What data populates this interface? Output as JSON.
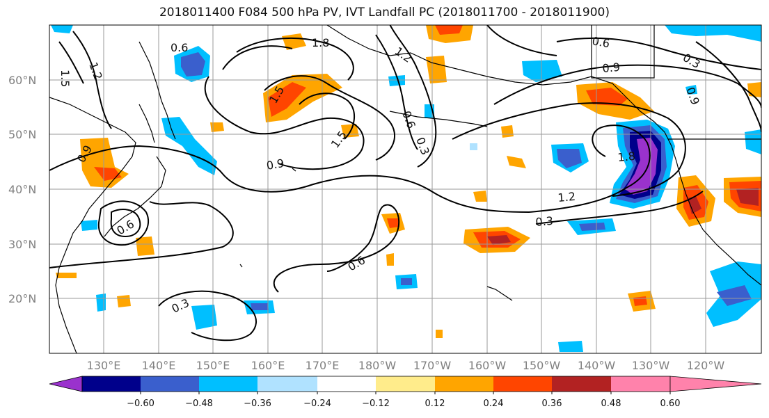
{
  "title": "2018011400 F084 500 hPa PV, IVT Landfall PC (2018011700 - 2018011900)",
  "lat_labels": [
    "60°N",
    "50°N",
    "40°N",
    "30°N",
    "20°N"
  ],
  "lon_labels": [
    "130°E",
    "140°E",
    "150°E",
    "160°E",
    "170°E",
    "180°W",
    "170°W",
    "160°W",
    "150°W",
    "140°W",
    "130°W",
    "120°W"
  ],
  "contour_labels": [
    "0.6",
    "1.8",
    "1.2",
    "1.5",
    "1.2",
    "1.5",
    "0.6",
    "0.3",
    "1.5",
    "0.9",
    "0.6",
    "0.9",
    "0.9",
    "0.3",
    "1.8",
    "1.2",
    "0.3",
    "0.6",
    "0.3",
    "0.6",
    "0.9"
  ],
  "colorbar": {
    "colors": [
      "#9a32cd",
      "#00008b",
      "#3a5fcd",
      "#00bfff",
      "#b0e2ff",
      "#ffffff",
      "#ffec8b",
      "#ffa500",
      "#ff4500",
      "#b22222",
      "#ff82ab"
    ],
    "ticks": [
      "−0.60",
      "−0.48",
      "−0.36",
      "−0.24",
      "−0.12",
      "0.12",
      "0.24",
      "0.36",
      "0.48",
      "0.60"
    ]
  }
}
